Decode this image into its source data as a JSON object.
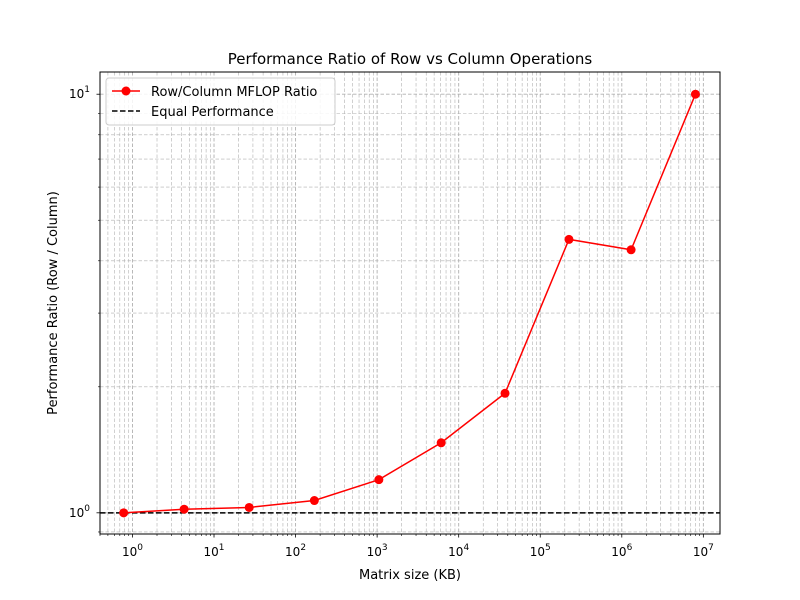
{
  "chart_data": {
    "type": "line",
    "title": "Performance Ratio of Row vs Column Operations",
    "xlabel": "Matrix size (KB)",
    "ylabel": "Performance Ratio (Row / Column)",
    "xscale": "log",
    "yscale": "log",
    "xlim": [
      0.4,
      16000000
    ],
    "ylim": [
      0.89,
      11.3
    ],
    "grid": "both major and minor, dashed",
    "legend_placement": "top-left",
    "x_tick_labels": [
      {
        "base": "10",
        "exp": "0"
      },
      {
        "base": "10",
        "exp": "1"
      },
      {
        "base": "10",
        "exp": "2"
      },
      {
        "base": "10",
        "exp": "3"
      },
      {
        "base": "10",
        "exp": "4"
      },
      {
        "base": "10",
        "exp": "5"
      },
      {
        "base": "10",
        "exp": "6"
      },
      {
        "base": "10",
        "exp": "7"
      }
    ],
    "y_tick_labels": [
      {
        "base": "10",
        "exp": "0"
      },
      {
        "base": "10",
        "exp": "1"
      }
    ],
    "series": [
      {
        "name": "Row/Column MFLOP Ratio",
        "color": "#ff0000",
        "marker": "circle",
        "line_style": "solid",
        "x": [
          0.78,
          4.3,
          27,
          170,
          1050,
          6100,
          37000,
          225000,
          1300000,
          8000000
        ],
        "y": [
          1.0,
          1.02,
          1.03,
          1.07,
          1.2,
          1.47,
          1.93,
          4.5,
          4.25,
          10.0
        ]
      },
      {
        "name": "Equal Performance",
        "color": "#000000",
        "line_style": "dashed",
        "y_constant": 1.0
      }
    ]
  }
}
